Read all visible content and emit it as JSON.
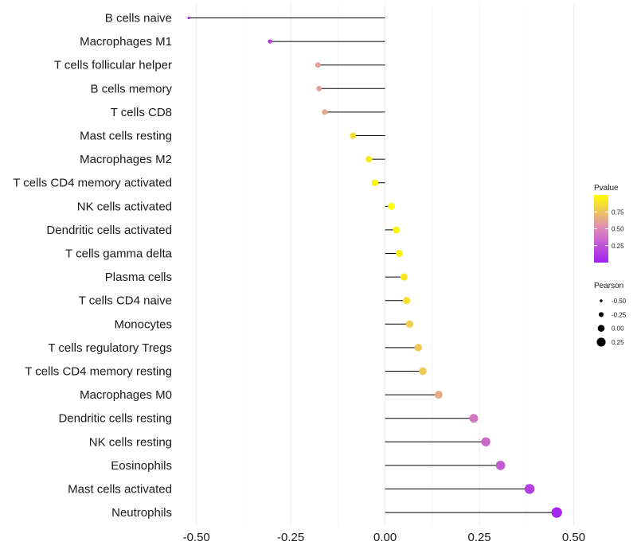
{
  "chart_data": {
    "type": "lollipop",
    "title": "",
    "xlabel": "",
    "ylabel": "",
    "xlim": [
      -0.5,
      0.5
    ],
    "xticks": [
      -0.5,
      -0.25,
      0.0,
      0.25,
      0.5
    ],
    "xtick_labels": [
      "-0.50",
      "-0.25",
      "0.00",
      "0.25",
      "0.50"
    ],
    "grid": true,
    "categories": [
      "B cells naive",
      "Macrophages M1",
      "T cells follicular helper",
      "B cells memory",
      "T cells CD8",
      "Mast cells resting",
      "Macrophages M2",
      "T cells CD4 memory activated",
      "NK cells activated",
      "Dendritic cells activated",
      "T cells gamma delta",
      "Plasma cells",
      "T cells CD4 naive",
      "Monocytes",
      "T cells regulatory  Tregs",
      "T cells CD4 memory resting",
      "Macrophages M0",
      "Dendritic cells resting",
      "NK cells resting",
      "Eosinophils",
      "Mast cells activated",
      "Neutrophils"
    ],
    "pearson": [
      -0.52,
      -0.305,
      -0.178,
      -0.175,
      -0.16,
      -0.085,
      -0.043,
      -0.027,
      0.017,
      0.03,
      0.038,
      0.05,
      0.057,
      0.065,
      0.088,
      0.1,
      0.142,
      0.235,
      0.267,
      0.306,
      0.383,
      0.455
    ],
    "pvalue": [
      0.03,
      0.15,
      0.6,
      0.6,
      0.63,
      0.85,
      0.92,
      0.96,
      0.99,
      0.96,
      0.95,
      0.9,
      0.86,
      0.8,
      0.77,
      0.77,
      0.65,
      0.42,
      0.35,
      0.28,
      0.15,
      0.04
    ],
    "legend_pvalue": {
      "title": "Pvalue",
      "ticks": [
        0.75,
        0.5,
        0.25
      ],
      "tick_labels": [
        "0.75",
        "0.50",
        "0.25"
      ],
      "range": [
        0.0,
        1.0
      ],
      "color_low": "#a020f0",
      "color_mid": "#dd88bb",
      "color_high": "#ffff00",
      "placement": "right"
    },
    "legend_pearson": {
      "title": "Pearson",
      "values": [
        -0.5,
        -0.25,
        0.0,
        0.25
      ],
      "labels": [
        "-0.50",
        "-0.25",
        "0.00",
        "0.25"
      ],
      "placement": "right"
    }
  }
}
